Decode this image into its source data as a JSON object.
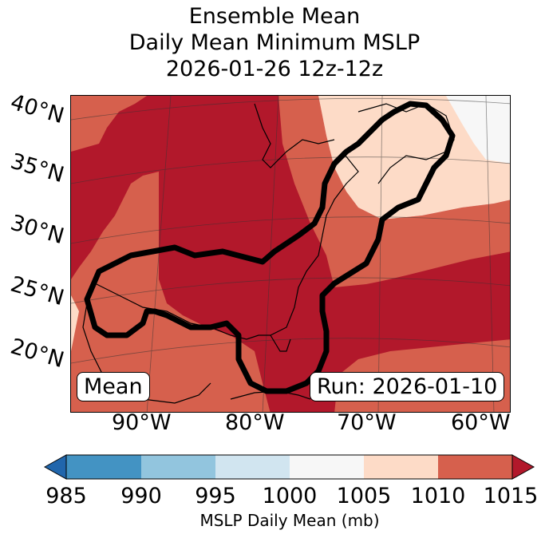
{
  "title": {
    "line1": "Ensemble Mean",
    "line2": "Daily Mean Minimum MSLP",
    "line3": "2026-01-26 12z-12z"
  },
  "map": {
    "lat_labels": [
      "40°N",
      "35°N",
      "30°N",
      "25°N",
      "20°N"
    ],
    "lon_labels": [
      "90°W",
      "80°W",
      "70°W",
      "60°W"
    ],
    "mean_label": "Mean",
    "run_label": "Run: 2026-01-10",
    "contour_color": "#000000",
    "fill_colors": {
      "lt1005": "#f7f7f7",
      "1005_1010": "#fddbc7",
      "1010_1015": "#d6604d",
      "gt1015": "#b2182b"
    }
  },
  "colorbar": {
    "title": "MSLP Daily Mean (mb)",
    "ticks": [
      "985",
      "990",
      "995",
      "1000",
      "1005",
      "1010",
      "1015"
    ],
    "colors": [
      "#2166ac",
      "#4393c3",
      "#92c5de",
      "#d1e5f0",
      "#f7f7f7",
      "#fddbc7",
      "#d6604d",
      "#b2182b"
    ]
  }
}
